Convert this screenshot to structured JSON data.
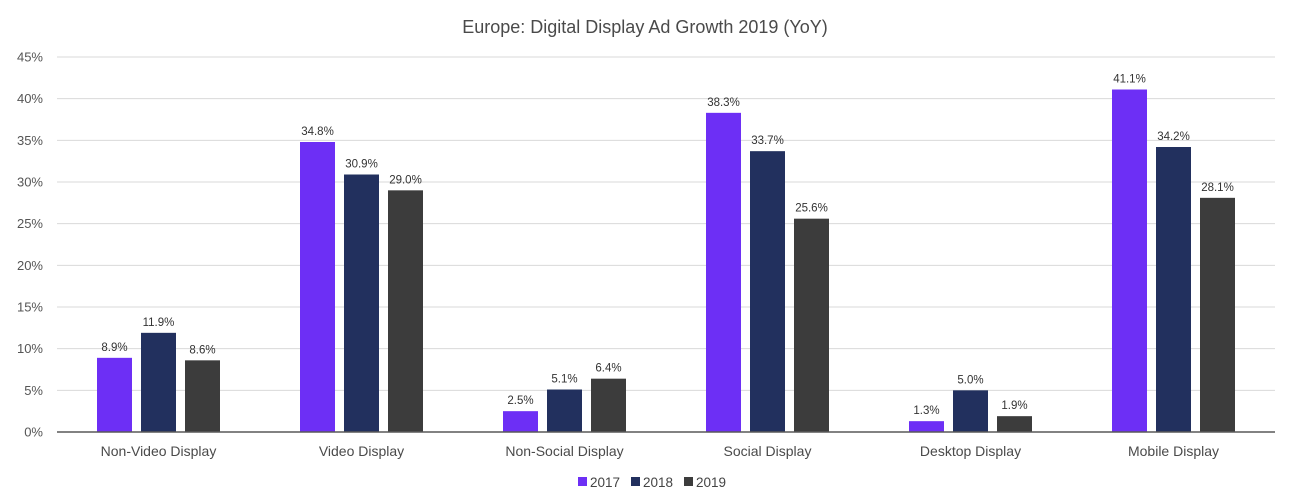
{
  "chart_data": {
    "type": "bar",
    "title": "Europe: Digital Display Ad Growth 2019 (YoY)",
    "xlabel": "",
    "ylabel": "",
    "ylim": [
      0,
      45
    ],
    "yticks": [
      0,
      5,
      10,
      15,
      20,
      25,
      30,
      35,
      40,
      45
    ],
    "ytick_labels": [
      "0%",
      "5%",
      "10%",
      "15%",
      "20%",
      "25%",
      "30%",
      "35%",
      "40%",
      "45%"
    ],
    "grid": true,
    "legend_position": "bottom",
    "categories": [
      "Non-Video Display",
      "Video Display",
      "Non-Social Display",
      "Social Display",
      "Desktop Display",
      "Mobile Display"
    ],
    "series": [
      {
        "name": "2017",
        "color": "#6d2ff5",
        "values": [
          8.9,
          34.8,
          2.5,
          38.3,
          1.3,
          41.1
        ],
        "labels": [
          "8.9%",
          "34.8%",
          "2.5%",
          "38.3%",
          "1.3%",
          "41.1%"
        ]
      },
      {
        "name": "2018",
        "color": "#22305e",
        "values": [
          11.9,
          30.9,
          5.1,
          33.7,
          5.0,
          34.2
        ],
        "labels": [
          "11.9%",
          "30.9%",
          "5.1%",
          "33.7%",
          "5.0%",
          "34.2%"
        ]
      },
      {
        "name": "2019",
        "color": "#3c3c3c",
        "values": [
          8.6,
          29.0,
          6.4,
          25.6,
          1.9,
          28.1
        ],
        "labels": [
          "8.6%",
          "29.0%",
          "6.4%",
          "25.6%",
          "1.9%",
          "28.1%"
        ]
      }
    ]
  }
}
